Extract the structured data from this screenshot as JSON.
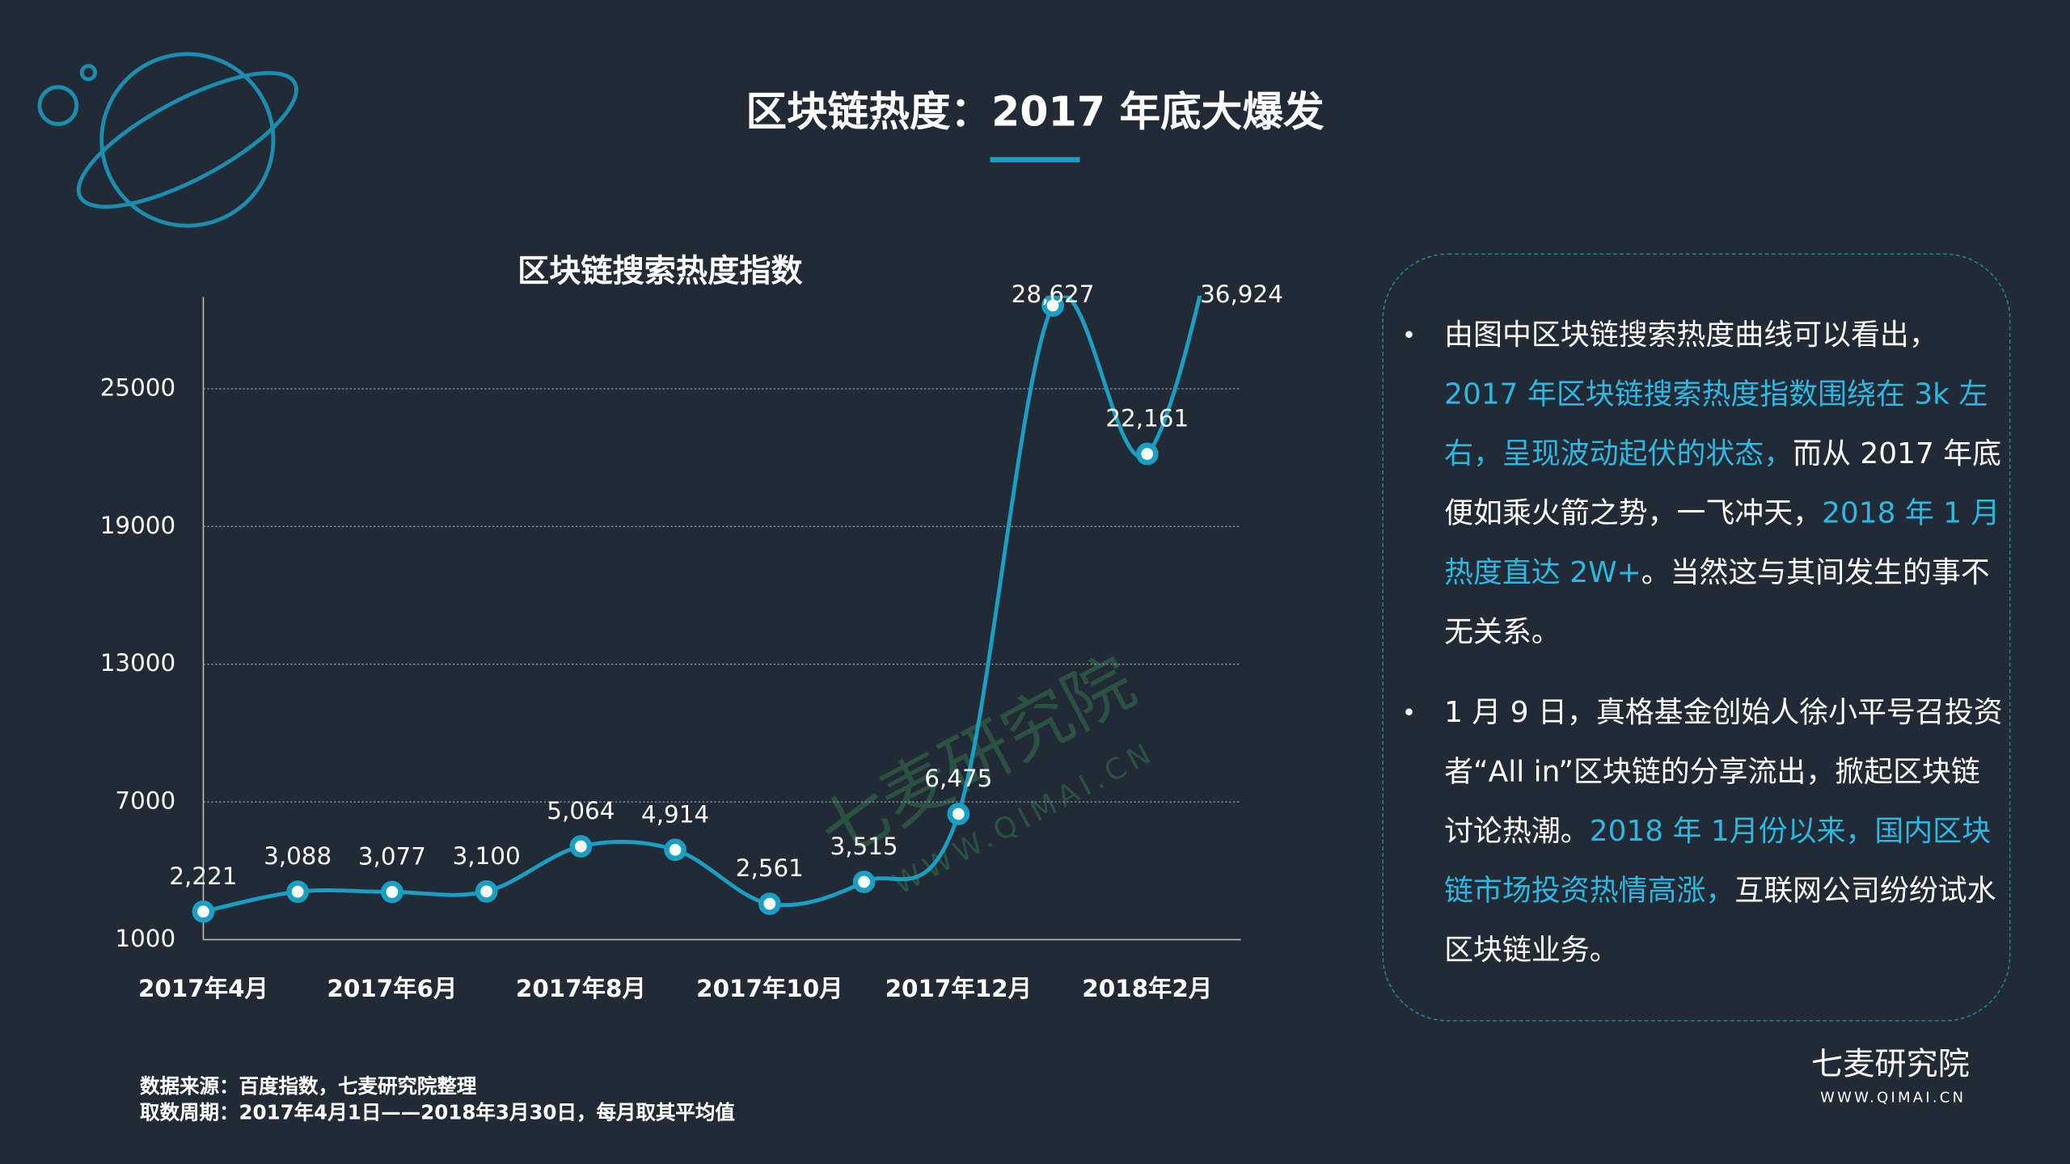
{
  "title": "区块链热度：2017 年底大爆发",
  "chart_data": {
    "type": "line",
    "title": "区块链搜索热度指数",
    "categories": [
      "2017年4月",
      null,
      "2017年6月",
      null,
      "2017年8月",
      null,
      "2017年10月",
      null,
      "2017年12月",
      null,
      "2018年2月",
      null
    ],
    "values": [
      2221,
      3088,
      3077,
      3100,
      5064,
      4914,
      2561,
      3515,
      6475,
      28627,
      22161,
      36924
    ],
    "value_labels": [
      "2,221",
      "3,088",
      "3,077",
      "3,100",
      "5,064",
      "4,914",
      "2,561",
      "3,515",
      "6,475",
      "28,627",
      "22,161",
      "36,924"
    ],
    "color": "#1a9fc4",
    "ylim": [
      1000,
      29000
    ],
    "yticks": [
      1000,
      7000,
      13000,
      19000,
      25000
    ],
    "grid": true
  },
  "notes": [
    [
      {
        "text": "由图中区块链搜索热度曲线可以看出，",
        "highlight": false
      },
      {
        "text": "2017 年区块链搜索热度指数围绕在 3k 左右，呈现波动起伏的状态，",
        "highlight": true
      },
      {
        "text": "而从 2017 年底便如乘火箭之势，一飞冲天，",
        "highlight": false
      },
      {
        "text": "2018 年 1 月热度直达 2W+",
        "highlight": true
      },
      {
        "text": "。当然这与其间发生的事不无关系。",
        "highlight": false
      }
    ],
    [
      {
        "text": "1 月 9 日，真格基金创始人徐小平号召投资者“All in”区块链的分享流出，掀起区块链讨论热潮。",
        "highlight": false
      },
      {
        "text": "2018 年 1月份以来，国内区块链市场投资热情高涨，",
        "highlight": true
      },
      {
        "text": "互联网公司纷纷试水区块链业务。",
        "highlight": false
      }
    ]
  ],
  "source": "数据来源：百度指数，七麦研究院整理",
  "period": "取数周期：2017年4月1日——2018年3月30日，每月取其平均值",
  "watermark": {
    "name": "七麦研究院",
    "url": "WWW.QIMAI.CN"
  },
  "brand": {
    "name": "七麦研究院",
    "url": "WWW.QIMAI.CN"
  }
}
